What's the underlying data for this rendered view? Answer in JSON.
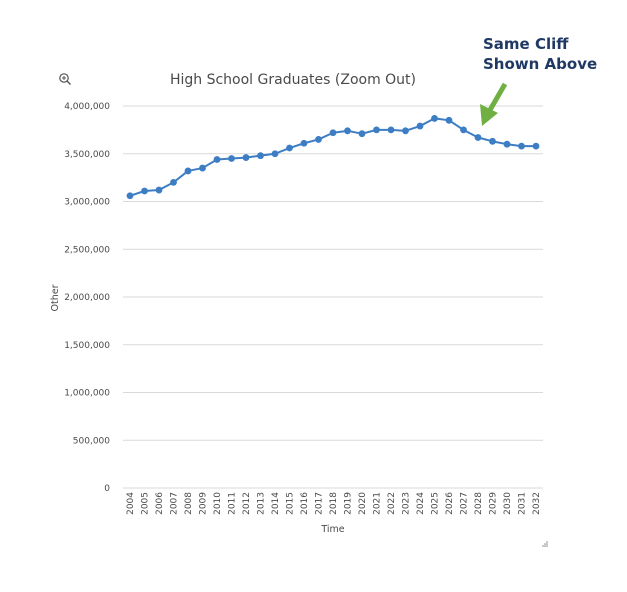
{
  "chart_data": {
    "type": "line",
    "title": "High School Graduates (Zoom Out)",
    "xlabel": "Time",
    "ylabel": "Other",
    "ylim": [
      0,
      4000000
    ],
    "yticks": [
      0,
      500000,
      1000000,
      1500000,
      2000000,
      2500000,
      3000000,
      3500000,
      4000000
    ],
    "ytick_labels": [
      "0",
      "500,000",
      "1,000,000",
      "1,500,000",
      "2,000,000",
      "2,500,000",
      "3,000,000",
      "3,500,000",
      "4,000,000"
    ],
    "grid": true,
    "legend": "none",
    "series": [
      {
        "color": "#3c7dc4",
        "x": [
          "2004",
          "2005",
          "2006",
          "2007",
          "2008",
          "2009",
          "2010",
          "2011",
          "2012",
          "2013",
          "2014",
          "2015",
          "2016",
          "2017",
          "2018",
          "2019",
          "2020",
          "2021",
          "2022",
          "2023",
          "2024",
          "2025",
          "2026",
          "2027",
          "2028",
          "2029",
          "2030",
          "2031",
          "2032"
        ],
        "values": [
          3060000,
          3110000,
          3120000,
          3200000,
          3320000,
          3350000,
          3440000,
          3450000,
          3460000,
          3480000,
          3500000,
          3560000,
          3610000,
          3650000,
          3720000,
          3740000,
          3710000,
          3750000,
          3750000,
          3740000,
          3790000,
          3870000,
          3850000,
          3750000,
          3670000,
          3630000,
          3600000,
          3580000,
          3580000
        ]
      }
    ],
    "annotation": {
      "lines": [
        "Same Cliff",
        "Shown Above"
      ],
      "arrow_color": "#70b043",
      "text_color": "#1f3864"
    }
  },
  "toolbar": {
    "zoom_icon": "zoom-in-icon",
    "resize_icon": "resize-grip-icon"
  }
}
